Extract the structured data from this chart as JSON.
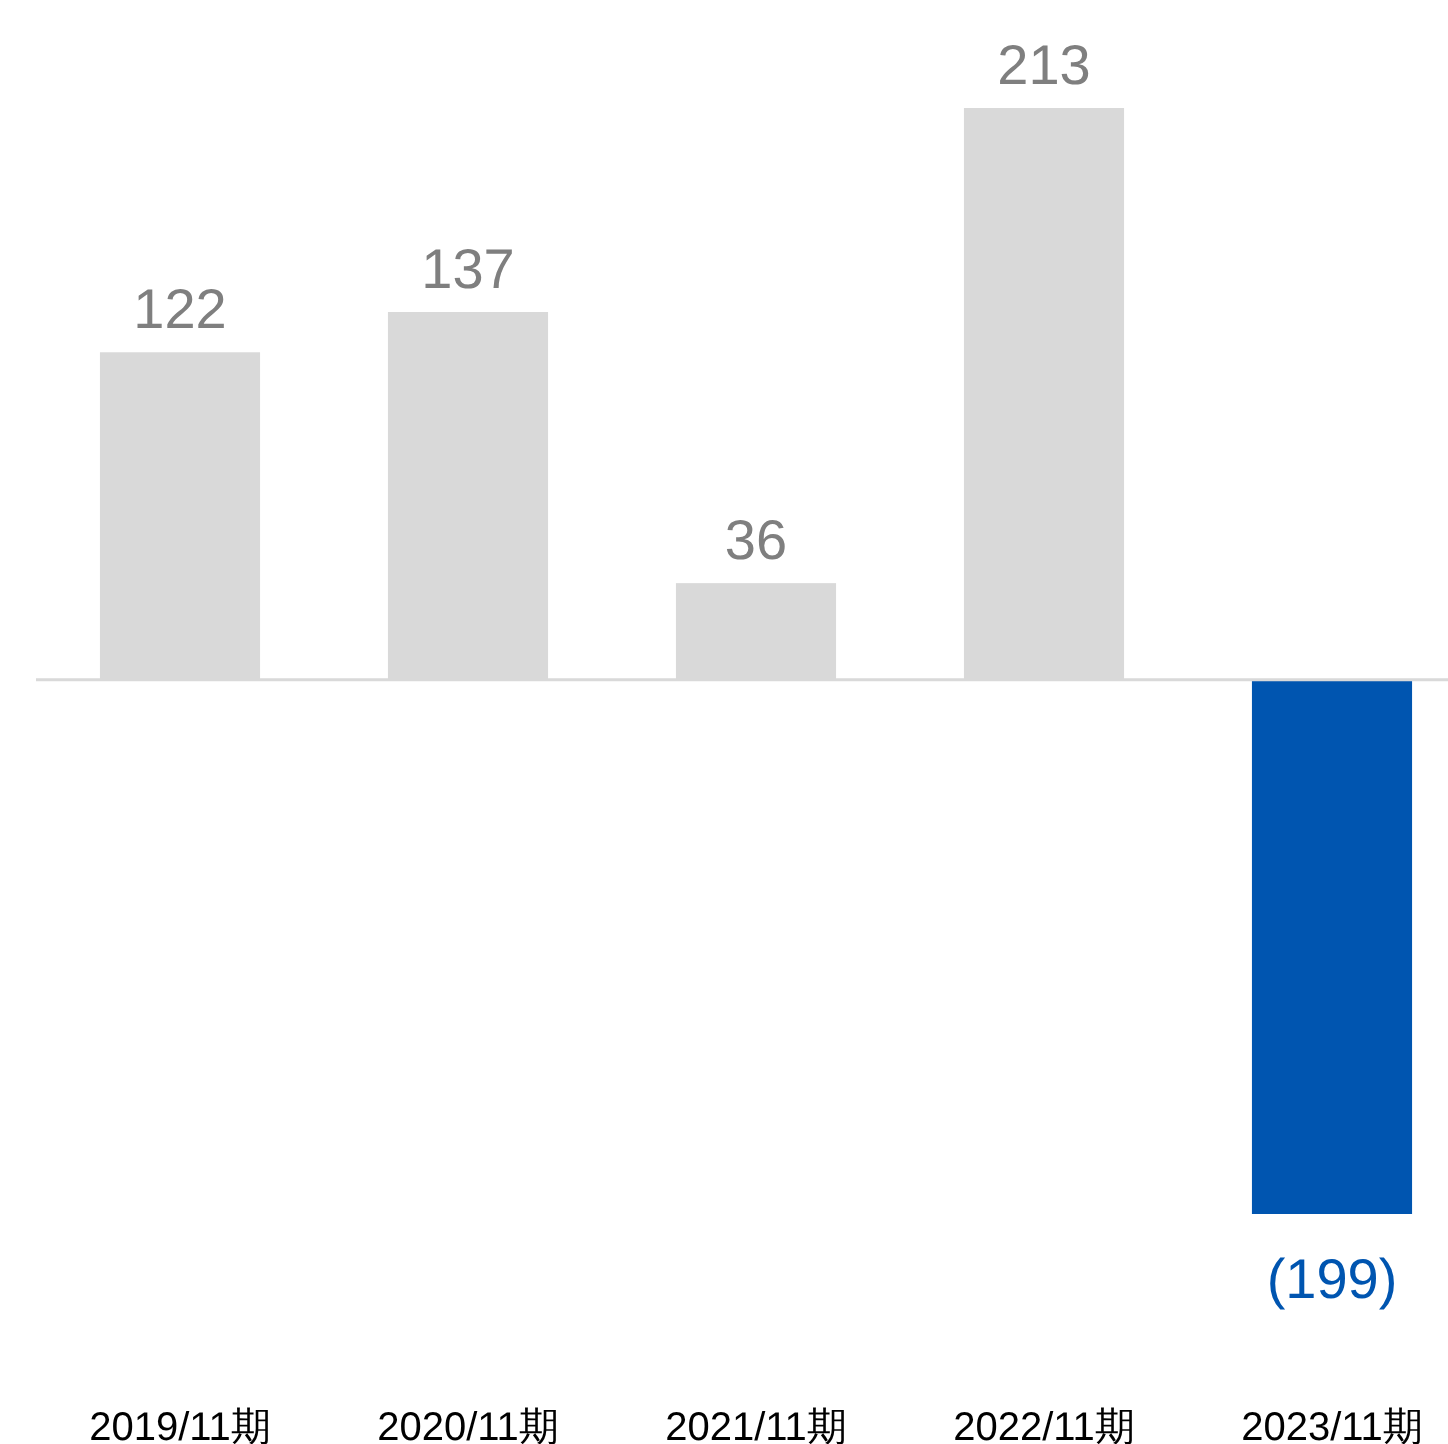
{
  "chart_data": {
    "type": "bar",
    "categories": [
      "2019/11期",
      "2020/11期",
      "2021/11期",
      "2022/11期",
      "2023/11期"
    ],
    "values": [
      122,
      137,
      36,
      213,
      -199
    ],
    "colors": [
      "#d9d9d9",
      "#d9d9d9",
      "#d9d9d9",
      "#d9d9d9",
      "#0055b0"
    ],
    "value_labels": [
      "122",
      "137",
      "36",
      "213",
      "(199)"
    ]
  }
}
